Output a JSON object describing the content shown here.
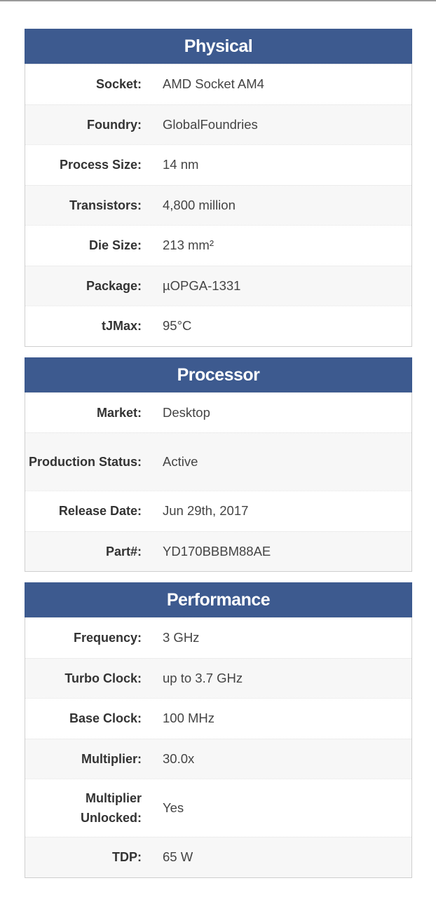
{
  "sections": [
    {
      "title": "Physical",
      "rows": [
        {
          "label": "Socket:",
          "value": "AMD Socket AM4"
        },
        {
          "label": "Foundry:",
          "value": "GlobalFoundries"
        },
        {
          "label": "Process Size:",
          "value": "14 nm"
        },
        {
          "label": "Transistors:",
          "value": "4,800 million"
        },
        {
          "label": "Die Size:",
          "value": "213 mm²"
        },
        {
          "label": "Package:",
          "value": "µOPGA-1331"
        },
        {
          "label": "tJMax:",
          "value": "95°C"
        }
      ]
    },
    {
      "title": "Processor",
      "rows": [
        {
          "label": "Market:",
          "value": "Desktop"
        },
        {
          "label": "Production Status:",
          "value": "Active",
          "tall": true
        },
        {
          "label": "Release Date:",
          "value": "Jun 29th, 2017"
        },
        {
          "label": "Part#:",
          "value": "YD170BBBM88AE"
        }
      ]
    },
    {
      "title": "Performance",
      "rows": [
        {
          "label": "Frequency:",
          "value": "3 GHz"
        },
        {
          "label": "Turbo Clock:",
          "value": "up to 3.7 GHz"
        },
        {
          "label": "Base Clock:",
          "value": "100 MHz"
        },
        {
          "label": "Multiplier:",
          "value": "30.0x"
        },
        {
          "label": "Multiplier Unlocked:",
          "value": "Yes",
          "tall": true
        },
        {
          "label": "TDP:",
          "value": "65 W"
        }
      ]
    }
  ],
  "colors": {
    "header": "#3d5a8f",
    "row_alt": "#f7f7f7"
  }
}
